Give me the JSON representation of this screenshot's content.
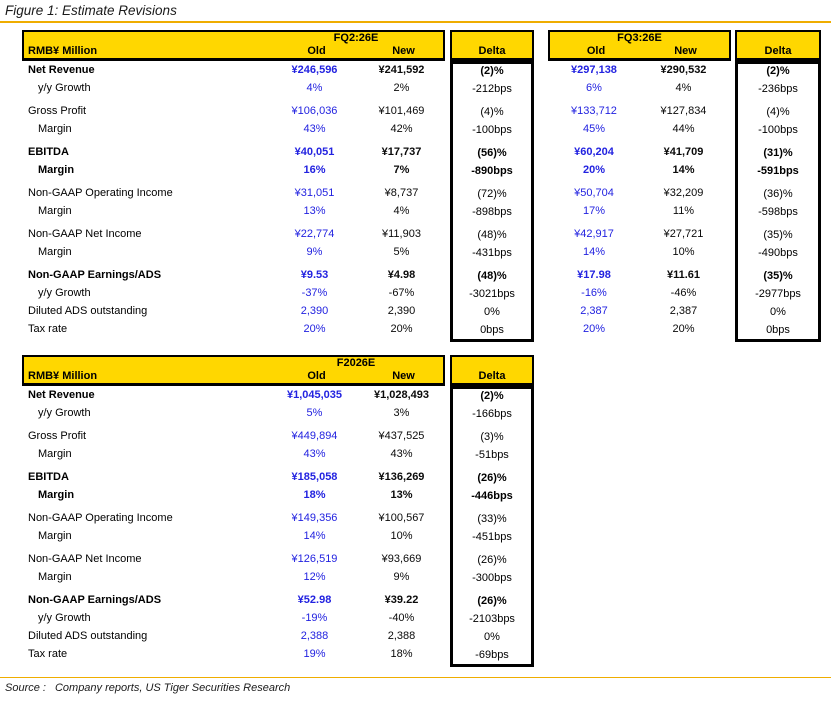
{
  "title": "Figure 1: Estimate Revisions",
  "source": {
    "label": "Source :",
    "text": "Company reports, US Tiger Securities Research"
  },
  "colors": {
    "header_yellow": "#FFD700",
    "old_value_blue": "#2222E0",
    "rule_orange": "#EFAD00",
    "border_black": "#000000"
  },
  "columns": {
    "row_header": "RMB¥ Million",
    "old": "Old",
    "new": "New",
    "delta": "Delta"
  },
  "row_meta": [
    {
      "label": "Net Revenue",
      "bold": true
    },
    {
      "label": "y/y Growth",
      "indent": true
    },
    {
      "label": "Gross Profit",
      "group": true
    },
    {
      "label": "Margin",
      "indent": true
    },
    {
      "label": "EBITDA",
      "bold": true,
      "group": true
    },
    {
      "label": "Margin",
      "bold": true,
      "indent": true
    },
    {
      "label": "Non-GAAP Operating Income",
      "group": true
    },
    {
      "label": "Margin",
      "indent": true
    },
    {
      "label": "Non-GAAP Net Income",
      "group": true
    },
    {
      "label": "Margin",
      "indent": true
    },
    {
      "label": "Non-GAAP Earnings/ADS",
      "bold": true,
      "group": true
    },
    {
      "label": "y/y Growth",
      "indent": true
    },
    {
      "label": "Diluted ADS outstanding"
    },
    {
      "label": "Tax rate"
    }
  ],
  "tables": [
    {
      "period": "FQ2:26E",
      "has_labels": true,
      "old": [
        "¥246,596",
        "4%",
        "¥106,036",
        "43%",
        "¥40,051",
        "16%",
        "¥31,051",
        "13%",
        "¥22,774",
        "9%",
        "¥9.53",
        "-37%",
        "2,390",
        "20%"
      ],
      "new": [
        "¥241,592",
        "2%",
        "¥101,469",
        "42%",
        "¥17,737",
        "7%",
        "¥8,737",
        "4%",
        "¥11,903",
        "5%",
        "¥4.98",
        "-67%",
        "2,390",
        "20%"
      ],
      "delta": [
        "(2)%",
        "-212bps",
        "(4)%",
        "-100bps",
        "(56)%",
        "-890bps",
        "(72)%",
        "-898bps",
        "(48)%",
        "-431bps",
        "(48)%",
        "-3021bps",
        "0%",
        "0bps"
      ]
    },
    {
      "period": "FQ3:26E",
      "has_labels": false,
      "old": [
        "¥297,138",
        "6%",
        "¥133,712",
        "45%",
        "¥60,204",
        "20%",
        "¥50,704",
        "17%",
        "¥42,917",
        "14%",
        "¥17.98",
        "-16%",
        "2,387",
        "20%"
      ],
      "new": [
        "¥290,532",
        "4%",
        "¥127,834",
        "44%",
        "¥41,709",
        "14%",
        "¥32,209",
        "11%",
        "¥27,721",
        "10%",
        "¥11.61",
        "-46%",
        "2,387",
        "20%"
      ],
      "delta": [
        "(2)%",
        "-236bps",
        "(4)%",
        "-100bps",
        "(31)%",
        "-591bps",
        "(36)%",
        "-598bps",
        "(35)%",
        "-490bps",
        "(35)%",
        "-2977bps",
        "0%",
        "0bps"
      ]
    },
    {
      "period": "F2026E",
      "has_labels": true,
      "old": [
        "¥1,045,035",
        "5%",
        "¥449,894",
        "43%",
        "¥185,058",
        "18%",
        "¥149,356",
        "14%",
        "¥126,519",
        "12%",
        "¥52.98",
        "-19%",
        "2,388",
        "19%"
      ],
      "new": [
        "¥1,028,493",
        "3%",
        "¥437,525",
        "43%",
        "¥136,269",
        "13%",
        "¥100,567",
        "10%",
        "¥93,669",
        "9%",
        "¥39.22",
        "-40%",
        "2,388",
        "18%"
      ],
      "delta": [
        "(2)%",
        "-166bps",
        "(3)%",
        "-51bps",
        "(26)%",
        "-446bps",
        "(33)%",
        "-451bps",
        "(26)%",
        "-300bps",
        "(26)%",
        "-2103bps",
        "0%",
        "-69bps"
      ]
    }
  ]
}
